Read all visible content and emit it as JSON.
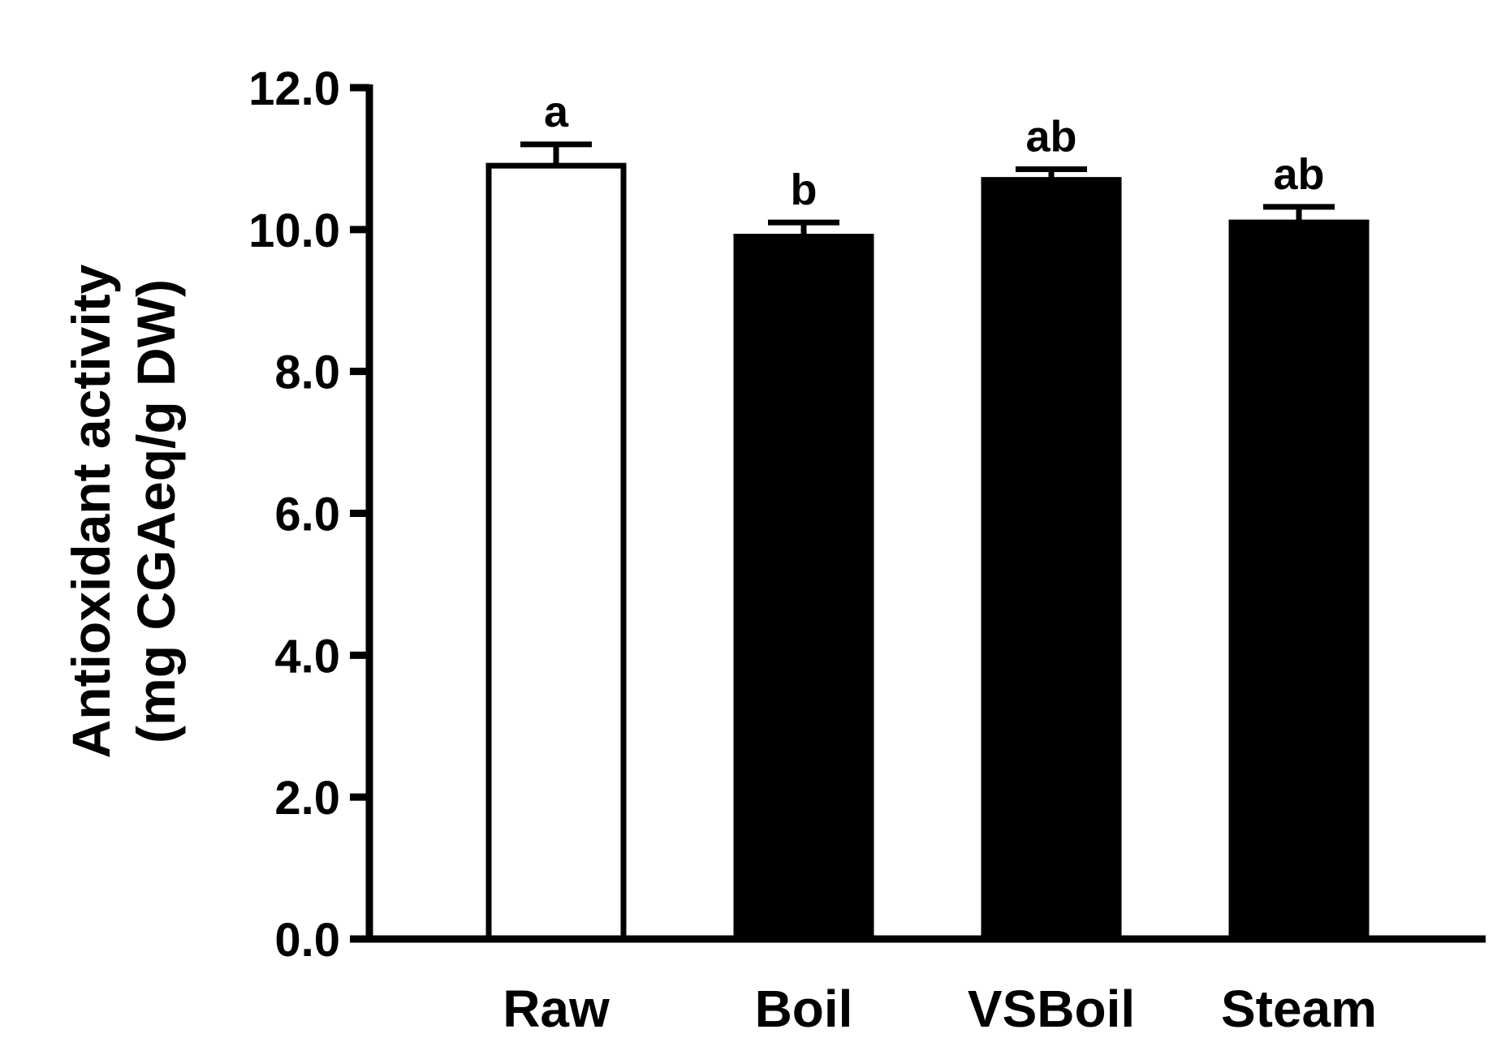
{
  "chart_data": {
    "type": "bar",
    "title": "",
    "xlabel": "",
    "ylabel": "Antioxidant activity",
    "ylabel_unit": "(mg CGAeq/g DW)",
    "ylim": [
      0,
      12
    ],
    "yticks": [
      "0.0",
      "2.0",
      "4.0",
      "6.0",
      "8.0",
      "10.0",
      "12.0"
    ],
    "ytick_values": [
      0,
      2,
      4,
      6,
      8,
      10,
      12
    ],
    "categories": [
      "Raw",
      "Boil",
      "VSBoil",
      "Steam"
    ],
    "values": [
      10.9,
      9.9,
      10.7,
      10.1
    ],
    "errors": [
      0.3,
      0.2,
      0.15,
      0.22
    ],
    "significance_letters": [
      "a",
      "b",
      "ab",
      "ab"
    ],
    "bar_fills": [
      "#ffffff",
      "#000000",
      "#000000",
      "#000000"
    ],
    "bar_stroke": "#000000",
    "grid": false,
    "legend": "none"
  }
}
